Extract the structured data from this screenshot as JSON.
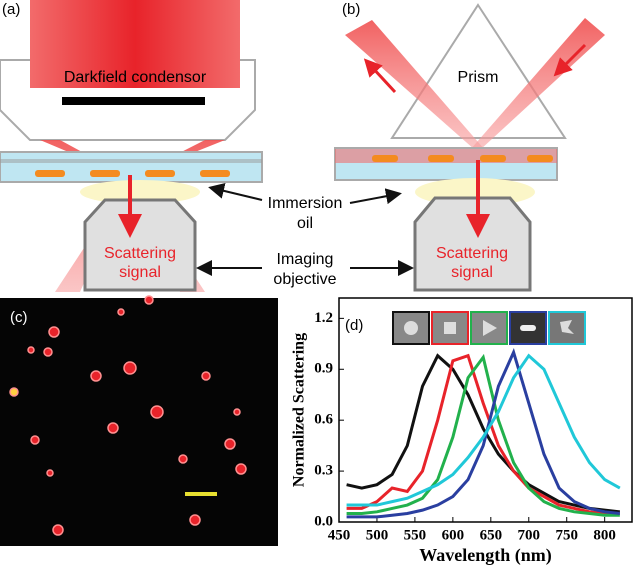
{
  "labels": {
    "a": "(a)",
    "b": "(b)",
    "c": "(c)",
    "d": "(d)"
  },
  "diagram": {
    "condensor": "Darkfield condensor",
    "prism": "Prism",
    "oil": [
      "Immersion",
      "oil"
    ],
    "signal_a": [
      "Scattering",
      "signal"
    ],
    "signal_b": [
      "Scattering",
      "signal"
    ],
    "objective": [
      "Imaging",
      "objective"
    ]
  },
  "chart_data": {
    "type": "line",
    "xlabel": "Wavelength (nm)",
    "ylabel": "Normalized Scattering",
    "x": [
      460,
      480,
      500,
      520,
      540,
      560,
      580,
      600,
      620,
      640,
      660,
      680,
      700,
      720,
      740,
      760,
      780,
      800,
      820
    ],
    "series": [
      {
        "name": null,
        "color": "#111111",
        "values": [
          0.22,
          0.2,
          0.22,
          0.28,
          0.45,
          0.8,
          0.98,
          0.9,
          0.75,
          0.55,
          0.4,
          0.3,
          0.22,
          0.17,
          0.12,
          0.1,
          0.08,
          0.07,
          0.06
        ]
      },
      {
        "name": null,
        "color": "#e8232a",
        "values": [
          0.08,
          0.08,
          0.12,
          0.2,
          0.18,
          0.3,
          0.6,
          0.95,
          0.98,
          0.7,
          0.45,
          0.3,
          0.2,
          0.15,
          0.1,
          0.08,
          0.06,
          0.05,
          0.05
        ]
      },
      {
        "name": null,
        "color": "#22b14c",
        "values": [
          0.05,
          0.05,
          0.06,
          0.08,
          0.1,
          0.14,
          0.25,
          0.5,
          0.85,
          0.97,
          0.6,
          0.35,
          0.2,
          0.12,
          0.08,
          0.06,
          0.05,
          0.04,
          0.04
        ]
      },
      {
        "name": null,
        "color": "#2a3fa0",
        "values": [
          0.03,
          0.03,
          0.03,
          0.04,
          0.05,
          0.07,
          0.1,
          0.15,
          0.25,
          0.45,
          0.8,
          1.0,
          0.7,
          0.4,
          0.2,
          0.12,
          0.08,
          0.06,
          0.05
        ]
      },
      {
        "name": null,
        "color": "#20c8d8",
        "values": [
          0.1,
          0.1,
          0.1,
          0.12,
          0.14,
          0.18,
          0.22,
          0.28,
          0.38,
          0.5,
          0.65,
          0.85,
          0.98,
          0.9,
          0.7,
          0.5,
          0.35,
          0.25,
          0.2
        ]
      }
    ],
    "xlim": [
      450,
      836
    ],
    "ylim": [
      0,
      1.32
    ],
    "xticks": [
      450,
      500,
      550,
      600,
      650,
      700,
      750,
      800
    ],
    "yticks": [
      {
        "value": 0,
        "label": "0.0"
      },
      0.3,
      0.6,
      0.9,
      1.2
    ]
  }
}
